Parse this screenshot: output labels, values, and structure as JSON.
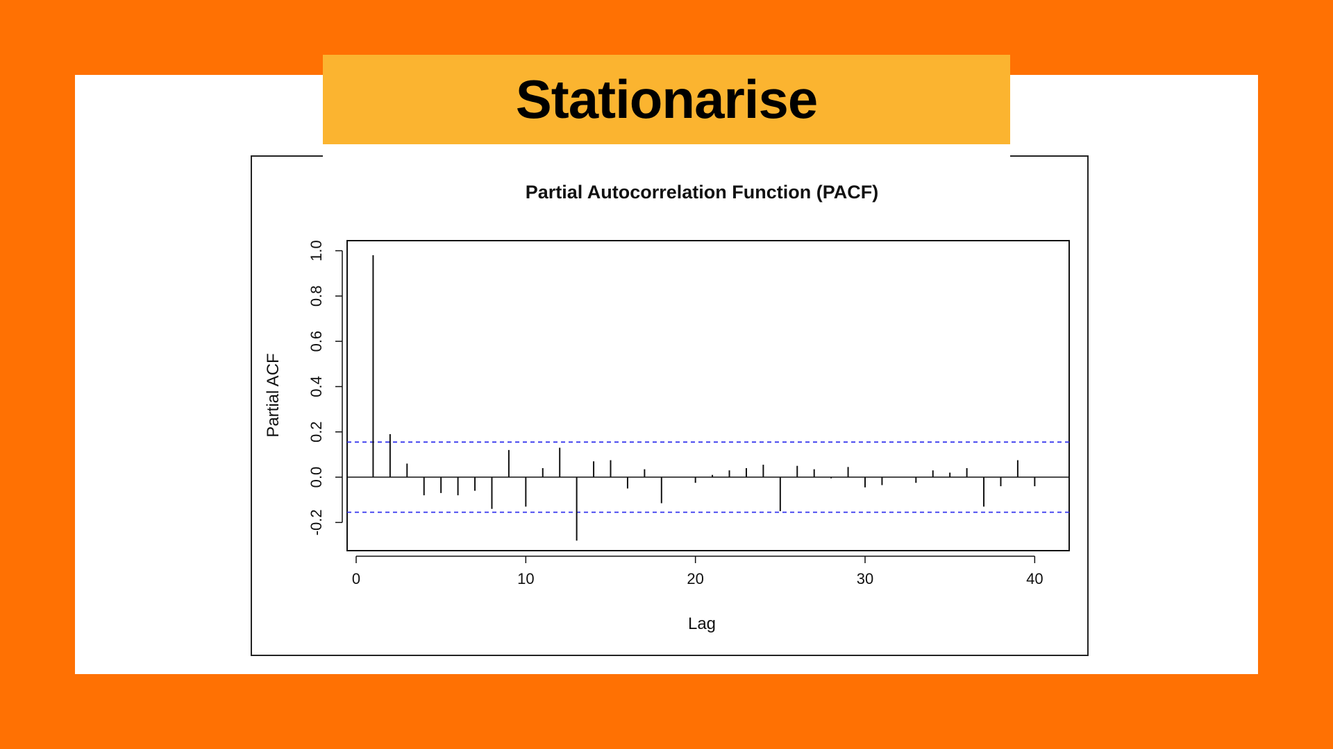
{
  "page": {
    "title": "Stationarise",
    "colors": {
      "background": "#FF7103",
      "card": "#FFFFFF",
      "banner": "#FBB430"
    }
  },
  "chart_data": {
    "type": "bar",
    "title": "Partial Autocorrelation Function (PACF)",
    "xlabel": "Lag",
    "ylabel": "Partial ACF",
    "xlim": [
      0,
      41.5
    ],
    "ylim": [
      -0.3,
      1.02
    ],
    "x_ticks": [
      0,
      10,
      20,
      30,
      40
    ],
    "y_ticks": [
      -0.2,
      0.0,
      0.2,
      0.4,
      0.6,
      0.8,
      1.0
    ],
    "x_tick_labels": [
      "0",
      "10",
      "20",
      "30",
      "40"
    ],
    "y_tick_labels": [
      "-0.2",
      "0.0",
      "0.2",
      "0.4",
      "0.6",
      "0.8",
      "1.0"
    ],
    "confidence_bounds": [
      0.155,
      -0.155
    ],
    "confidence_color": "#3333EE",
    "lags": [
      1,
      2,
      3,
      4,
      5,
      6,
      7,
      8,
      9,
      10,
      11,
      12,
      13,
      14,
      15,
      16,
      17,
      18,
      19,
      20,
      21,
      22,
      23,
      24,
      25,
      26,
      27,
      28,
      29,
      30,
      31,
      32,
      33,
      34,
      35,
      36,
      37,
      38,
      39,
      40
    ],
    "values": [
      0.98,
      0.19,
      0.06,
      -0.08,
      -0.07,
      -0.08,
      -0.06,
      -0.14,
      0.12,
      -0.13,
      0.04,
      0.13,
      -0.28,
      0.07,
      0.075,
      -0.05,
      0.035,
      -0.115,
      0.0,
      -0.025,
      0.01,
      0.03,
      0.04,
      0.055,
      -0.15,
      0.05,
      0.035,
      -0.005,
      0.045,
      -0.045,
      -0.035,
      0.0,
      -0.025,
      0.03,
      0.02,
      0.04,
      -0.13,
      -0.04,
      0.075,
      -0.04
    ],
    "grid": false
  }
}
